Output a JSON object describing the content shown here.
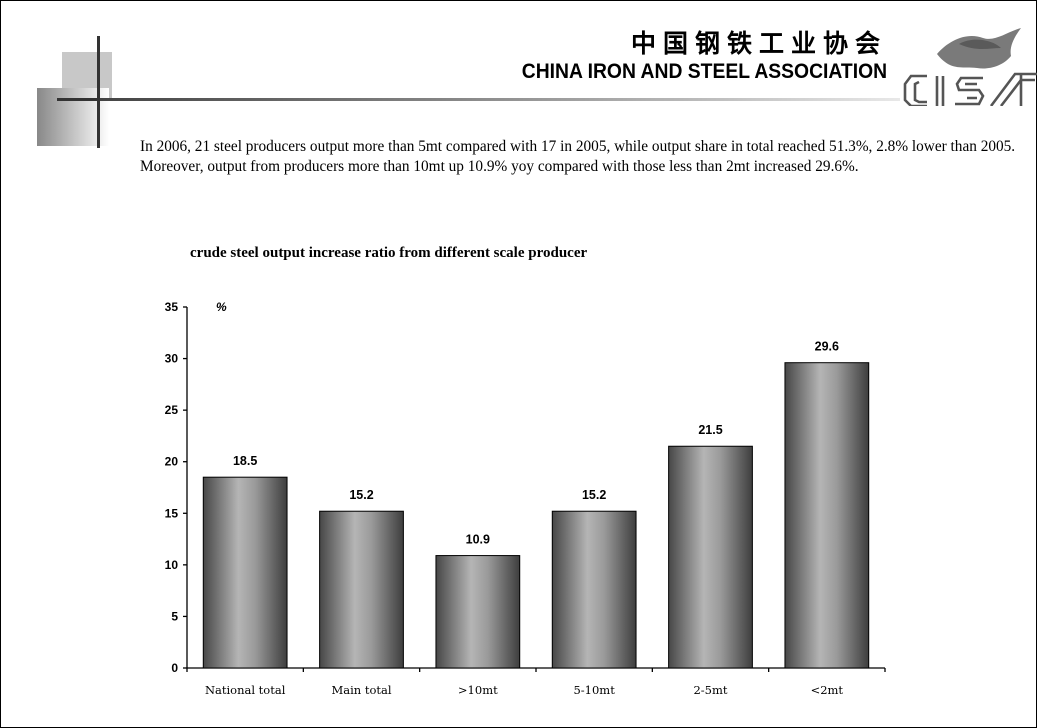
{
  "header": {
    "title_cn": "中国钢铁工业协会",
    "title_en": "CHINA IRON AND STEEL ASSOCIATION",
    "logo_text": "CISA"
  },
  "body_text": "In 2006, 21 steel producers output more than 5mt compared with 17 in 2005, while output share in total reached 51.3%, 2.8% lower than 2005. Moreover, output from producers more than 10mt up 10.9% yoy compared with those less than 2mt increased 29.6%.",
  "chart_data": {
    "type": "bar",
    "title": "crude steel output increase ratio from different scale producer",
    "unit": "%",
    "categories": [
      "National total",
      "Main total",
      ">10mt",
      "5-10mt",
      "2-5mt",
      "<2mt"
    ],
    "values": [
      18.5,
      15.2,
      10.9,
      15.2,
      21.5,
      29.6
    ],
    "value_labels": [
      "18.5",
      "15.2",
      "10.9",
      "15.2",
      "21.5",
      "29.6"
    ],
    "ylim": [
      0,
      35
    ],
    "yticks": [
      0,
      5,
      10,
      15,
      20,
      25,
      30,
      35
    ],
    "ytick_labels": [
      "0",
      "5",
      "10",
      "15",
      "20",
      "25",
      "30",
      "35"
    ],
    "grid": false,
    "legend": "none"
  }
}
